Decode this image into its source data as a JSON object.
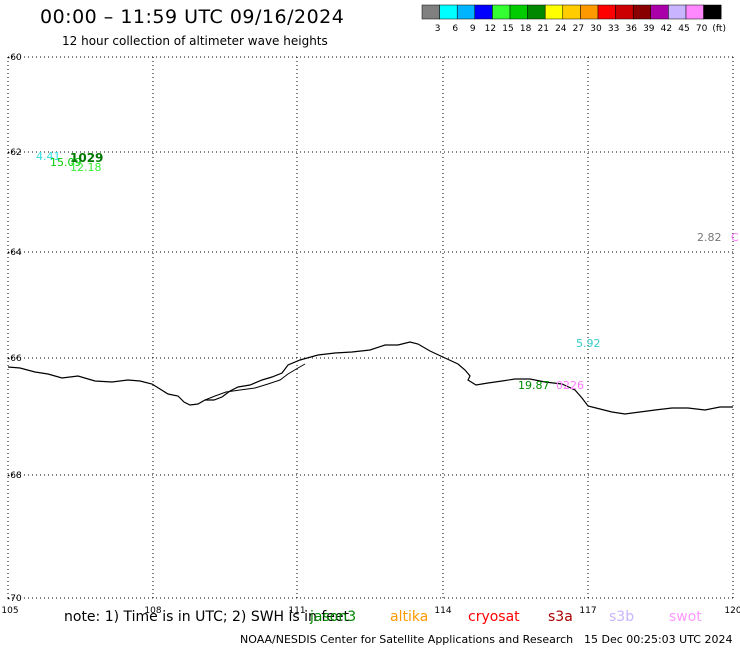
{
  "header": {
    "title": "00:00 – 11:59 UTC 09/16/2024",
    "subtitle": "12 hour collection of altimeter wave heights"
  },
  "legend": {
    "unit": "(ft)",
    "bins": [
      {
        "color": "#808080",
        "label": "3"
      },
      {
        "color": "#00ffff",
        "label": "6"
      },
      {
        "color": "#00b4ff",
        "label": "9"
      },
      {
        "color": "#0000ff",
        "label": "12"
      },
      {
        "color": "#33ff33",
        "label": "15"
      },
      {
        "color": "#00cc00",
        "label": "18"
      },
      {
        "color": "#008800",
        "label": "21"
      },
      {
        "color": "#ffff00",
        "label": "24"
      },
      {
        "color": "#ffcc00",
        "label": "27"
      },
      {
        "color": "#ff9900",
        "label": "30"
      },
      {
        "color": "#ff0000",
        "label": "33"
      },
      {
        "color": "#cc0000",
        "label": "36"
      },
      {
        "color": "#880000",
        "label": "39"
      },
      {
        "color": "#aa00aa",
        "label": "42"
      },
      {
        "color": "#c8b4ff",
        "label": "45"
      },
      {
        "color": "#ff88ff",
        "label": "70"
      },
      {
        "color": "#000000",
        "label": ""
      }
    ]
  },
  "map": {
    "lat_ticks": [
      "-60",
      "-62",
      "-64",
      "-66",
      "-68",
      "-70"
    ],
    "lon_ticks": [
      "105",
      "108",
      "111",
      "114",
      "117",
      "120"
    ],
    "observations": [
      {
        "text": "4.41",
        "color": "#33dddd"
      },
      {
        "text": "15.09",
        "color": "#00cc00"
      },
      {
        "text": "1029",
        "color": "#007700",
        "bold": true
      },
      {
        "text": "12.18",
        "color": "#33ee33"
      },
      {
        "text": "2.82",
        "color": "#777777"
      },
      {
        "text": "C",
        "color": "#ff77ff"
      },
      {
        "text": "5.92",
        "color": "#33cccc"
      },
      {
        "text": "19.87",
        "color": "#008800"
      },
      {
        "text": "0226",
        "color": "#ff77ff"
      }
    ]
  },
  "footer": {
    "note": "note:  1) Time is in UTC;  2) SWH is in feet",
    "missions": [
      {
        "name": "jason3",
        "color": "#008800"
      },
      {
        "name": "altika",
        "color": "#ff9900"
      },
      {
        "name": "cryosat",
        "color": "#ff0000"
      },
      {
        "name": "s3a",
        "color": "#aa0000"
      },
      {
        "name": "s3b",
        "color": "#c8b4ff"
      },
      {
        "name": "swot",
        "color": "#ff99ff"
      }
    ],
    "credit": "NOAA/NESDIS Center for Satellite Applications and Research",
    "timestamp": "15 Dec 00:25:03 UTC 2024"
  }
}
